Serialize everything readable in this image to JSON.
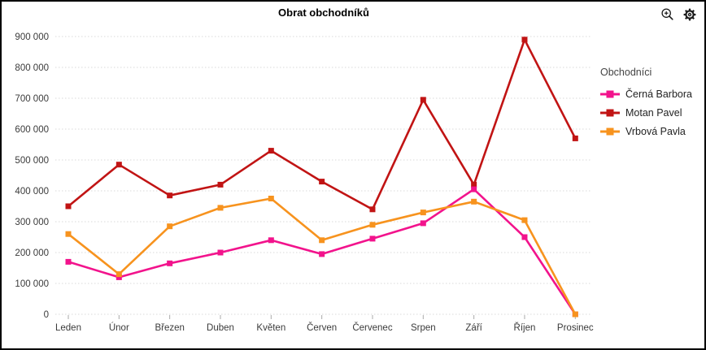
{
  "frame": {
    "border_color": "#000000",
    "background": "#ffffff"
  },
  "toolbar": {
    "zoom_icon": "magnifier-plus",
    "settings_icon": "gear"
  },
  "chart_data": {
    "type": "line",
    "title": "Obrat obchodníků",
    "legend_title": "Obchodníci",
    "legend_position": "right",
    "grid": "horizontal-dotted",
    "categories": [
      "Leden",
      "Únor",
      "Březen",
      "Duben",
      "Květen",
      "Červen",
      "Červenec",
      "Srpen",
      "Září",
      "Říjen",
      "Prosinec"
    ],
    "series": [
      {
        "name": "Černá Barbora",
        "color": "#F2138C",
        "values": [
          170000,
          120000,
          165000,
          200000,
          240000,
          195000,
          245000,
          295000,
          405000,
          250000,
          0
        ]
      },
      {
        "name": "Motan Pavel",
        "color": "#C11414",
        "values": [
          350000,
          485000,
          385000,
          420000,
          530000,
          430000,
          340000,
          695000,
          420000,
          890000,
          570000
        ]
      },
      {
        "name": "Vrbová Pavla",
        "color": "#F7931E",
        "values": [
          260000,
          130000,
          285000,
          345000,
          375000,
          240000,
          290000,
          330000,
          365000,
          305000,
          0
        ]
      }
    ],
    "ylim": [
      0,
      900000
    ],
    "ytick_step": 100000,
    "ytick_labels": [
      "0",
      "100 000",
      "200 000",
      "300 000",
      "400 000",
      "500 000",
      "600 000",
      "700 000",
      "800 000",
      "900 000"
    ],
    "axis_text_color": "#3a3a3a",
    "gridline_color": "#d9d9d9",
    "tick_color": "#aaaaaa"
  }
}
